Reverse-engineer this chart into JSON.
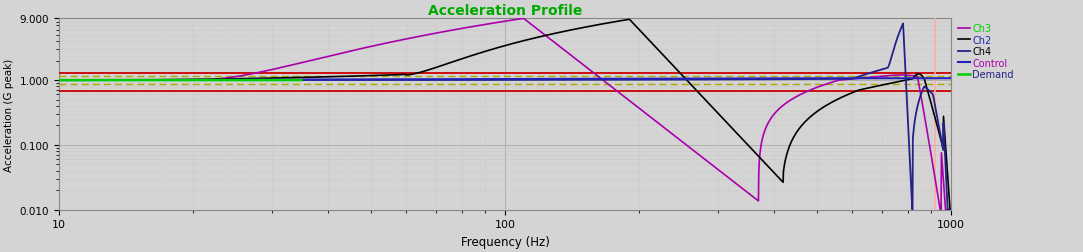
{
  "title": "Acceleration Profile",
  "title_color": "#00AA00",
  "xlabel": "Frequency (Hz)",
  "ylabel": "Acceleration (G peak)",
  "xlim": [
    10,
    1000
  ],
  "ylim": [
    0.01,
    9.0
  ],
  "plot_bg_color": "#D4D4D4",
  "grid_major_color": "#BBBBBB",
  "grid_minor_color": "#CCCCCC",
  "demand_level": 1.0,
  "upper_red_line": 1.3,
  "lower_red_line": 0.68,
  "upper_dashed_line": 1.15,
  "lower_dashed_line": 0.87,
  "dashed_color": "#AAAA00",
  "red_line_color": "#CC0000",
  "vertical_line_x": 920,
  "vertical_line_color": "#FFAAAA",
  "legend_labels": [
    "Demand",
    "Control",
    "Ch2",
    "Ch3",
    "Ch4"
  ],
  "legend_colors": [
    "#00CC00",
    "#2222BB",
    "#000000",
    "#AA00AA",
    "#222288"
  ]
}
